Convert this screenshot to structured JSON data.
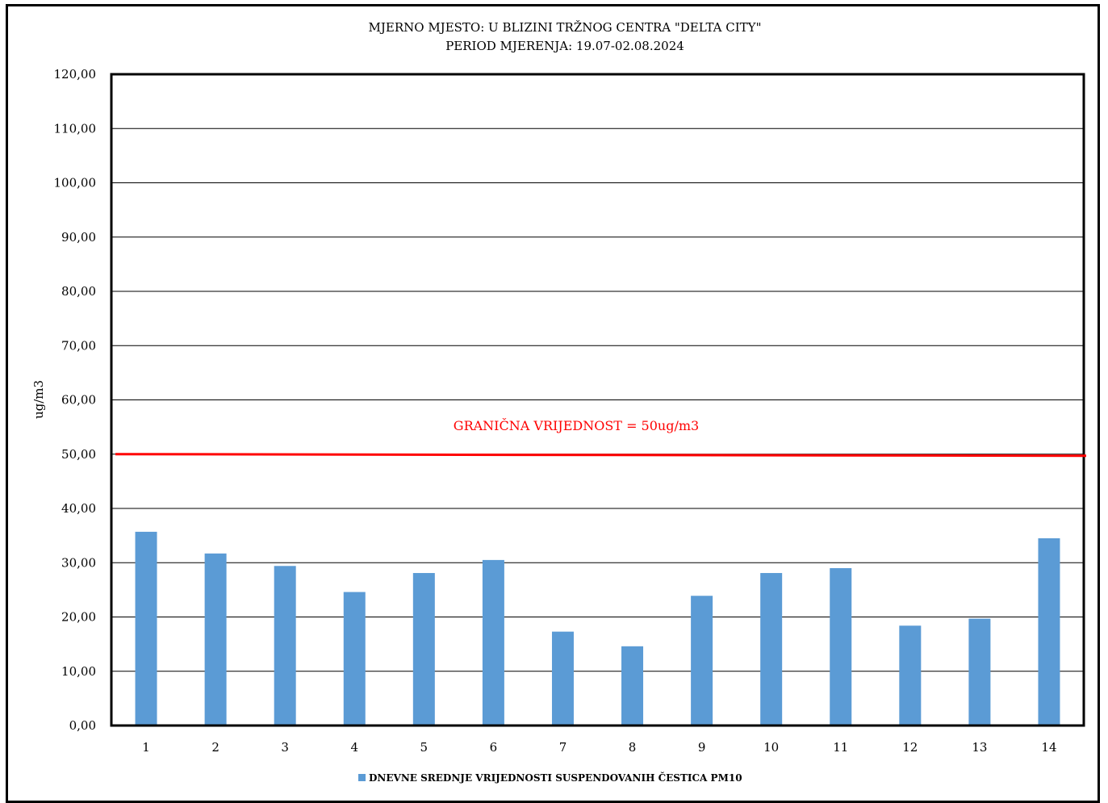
{
  "chart_data": {
    "type": "bar",
    "title": "MJERNO MJESTO: U BLIZINI TRŽNOG CENTRA \"DELTA CITY\"",
    "subtitle": "PERIOD MJERENJA:  19.07-02.08.2024",
    "ylabel": "ug/m3",
    "xlabel": "",
    "ylim": [
      0,
      120
    ],
    "y_ticks": [
      "0,00",
      "10,00",
      "20,00",
      "30,00",
      "40,00",
      "50,00",
      "60,00",
      "70,00",
      "80,00",
      "90,00",
      "100,00",
      "110,00",
      "120,00"
    ],
    "categories": [
      "1",
      "2",
      "3",
      "4",
      "5",
      "6",
      "7",
      "8",
      "9",
      "10",
      "11",
      "12",
      "13",
      "14"
    ],
    "series": [
      {
        "name": "DNEVNE SREDNJE VRIJEDNOSTI SUSPENDOVANIH ČESTICA PM10",
        "color": "#5b9bd5",
        "values": [
          35.7,
          31.7,
          29.4,
          24.6,
          28.1,
          30.5,
          17.3,
          14.6,
          23.9,
          28.1,
          29.0,
          18.4,
          19.7,
          34.5
        ]
      }
    ],
    "limit_line": {
      "value": 50,
      "label": "GRANIČNA VRIJEDNOST = 50ug/m3",
      "color": "#ff0000"
    },
    "grid": true,
    "legend_position": "bottom"
  }
}
